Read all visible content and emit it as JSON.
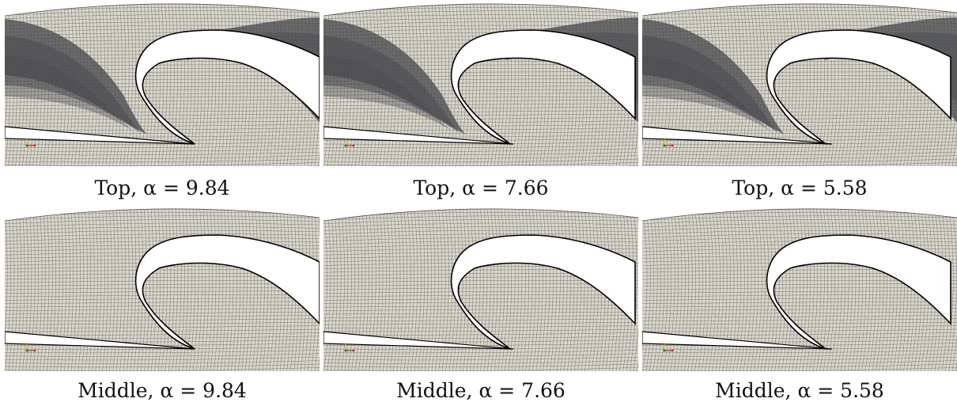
{
  "figure": {
    "panels": [
      {
        "row": "top",
        "caption": "Top, α = 9.84",
        "label": "Top",
        "alpha": 9.84
      },
      {
        "row": "top",
        "caption": "Top, α = 7.66",
        "label": "Top",
        "alpha": 7.66
      },
      {
        "row": "top",
        "caption": "Top, α = 5.58",
        "label": "Top",
        "alpha": 5.58
      },
      {
        "row": "middle",
        "caption": "Middle, α = 9.84",
        "label": "Middle",
        "alpha": 9.84
      },
      {
        "row": "middle",
        "caption": "Middle, α = 7.66",
        "label": "Middle",
        "alpha": 7.66
      },
      {
        "row": "middle",
        "caption": "Middle, α = 5.58",
        "label": "Middle",
        "alpha": 5.58
      }
    ]
  },
  "colors": {
    "mesh_fill": "#d9d6cc",
    "mesh_line": "#3a3a36",
    "shade_dark": "#4a4b50",
    "blade_outline": "#000000",
    "background": "#ffffff"
  }
}
